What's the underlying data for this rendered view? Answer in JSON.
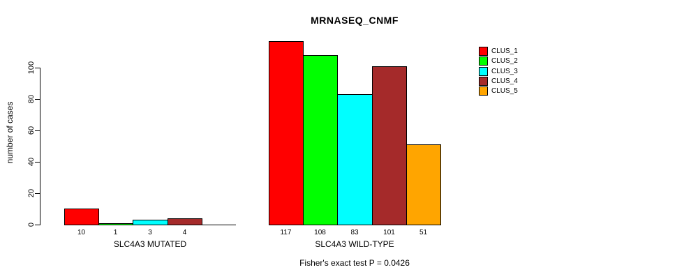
{
  "chart_data": {
    "type": "bar",
    "title": "MRNASEQ_CNMF",
    "ylabel": "number of cases",
    "ylim": [
      0,
      100
    ],
    "yticks": [
      0,
      20,
      40,
      60,
      80,
      100
    ],
    "grid": false,
    "legend_position": "right-inside",
    "legend": [
      {
        "label": "CLUS_1",
        "color": "#FF0000"
      },
      {
        "label": "CLUS_2",
        "color": "#00FF00"
      },
      {
        "label": "CLUS_3",
        "color": "#00FFFF"
      },
      {
        "label": "CLUS_4",
        "color": "#A52A2A"
      },
      {
        "label": "CLUS_5",
        "color": "#FFA500"
      }
    ],
    "groups": [
      {
        "label": "SLC4A3 MUTATED",
        "categories": [
          "CLUS_1",
          "CLUS_2",
          "CLUS_3",
          "CLUS_4",
          "CLUS_5"
        ],
        "values": [
          10,
          1,
          3,
          4,
          0
        ],
        "bar_labels": [
          "10",
          "1",
          "3",
          "4",
          ""
        ]
      },
      {
        "label": "SLC4A3 WILD-TYPE",
        "categories": [
          "CLUS_1",
          "CLUS_2",
          "CLUS_3",
          "CLUS_4",
          "CLUS_5"
        ],
        "values": [
          117,
          108,
          83,
          101,
          51
        ],
        "bar_labels": [
          "117",
          "108",
          "83",
          "101",
          "51"
        ]
      }
    ],
    "annotation": "Fisher's exact test P = 0.0426"
  }
}
